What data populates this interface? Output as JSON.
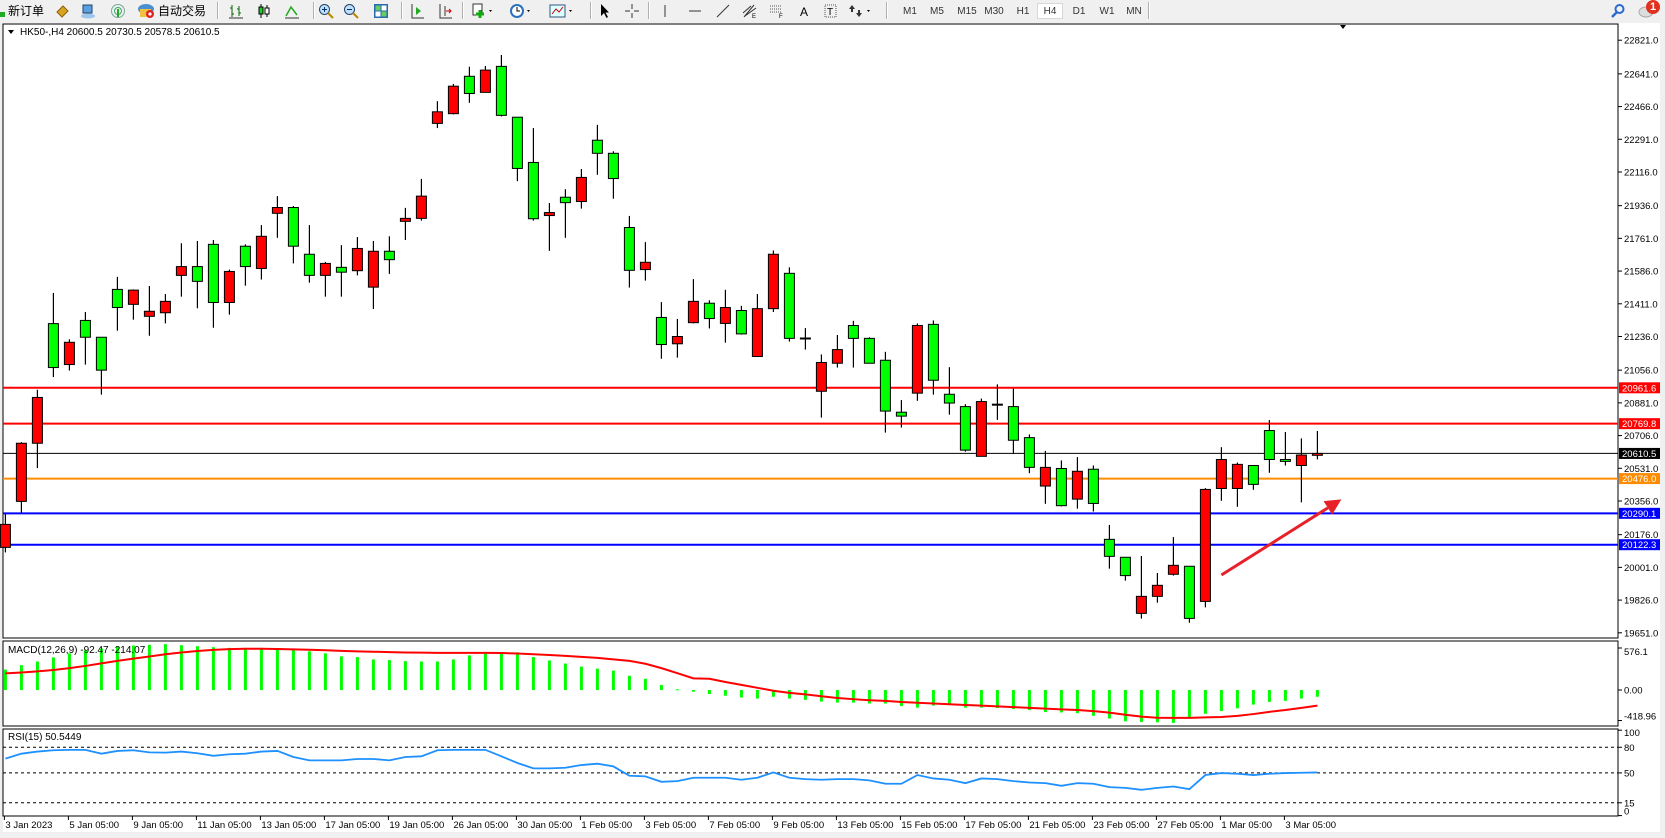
{
  "toolbar": {
    "new_order_label": "新订单",
    "auto_trading_label": "自动交易",
    "icons": [
      "new-order-icon",
      "market-watch-icon",
      "navigator-icon",
      "signals-icon",
      "auto-trading-icon",
      "bar-chart-icon",
      "candlestick-icon",
      "line-chart-icon",
      "zoom-in-icon",
      "zoom-out-icon",
      "tile-windows-icon",
      "chart-shift-icon",
      "auto-scroll-icon",
      "indicators-icon",
      "periods-icon",
      "templates-icon",
      "cursor-icon",
      "crosshair-icon",
      "vertical-line-icon",
      "horizontal-line-icon",
      "trendline-icon",
      "fibonacci-icon",
      "fibo-fan-icon",
      "text-icon",
      "text-label-icon",
      "arrows-icon",
      "search-icon",
      "notification-icon"
    ],
    "timeframes": [
      "M1",
      "M5",
      "M15",
      "M30",
      "H1",
      "H4",
      "D1",
      "W1",
      "MN"
    ],
    "active_timeframe": "H4",
    "notification_count": "1"
  },
  "chart": {
    "header": "HK50-,H4  20600.5 20730.5 20578.5 20610.5",
    "macd_label": "MACD(12,26,9) -92.47 -214.07",
    "rsi_label": "RSI(15) 50.5449"
  },
  "chart_data": [
    {
      "type": "candlestick",
      "symbol": "HK50-",
      "timeframe": "H4",
      "ylim": [
        19651.0,
        22821.0
      ],
      "y_ticks": [
        "22821.0",
        "22641.0",
        "22466.0",
        "22291.0",
        "22116.0",
        "21936.0",
        "21761.0",
        "21586.0",
        "21411.0",
        "21236.0",
        "21056.0",
        "20881.0",
        "20706.0",
        "20531.0",
        "20356.0",
        "20176.0",
        "20001.0",
        "19826.0",
        "19651.0"
      ],
      "x_labels": [
        "3 Jan 2023",
        "5 Jan 05:00",
        "9 Jan 05:00",
        "11 Jan 05:00",
        "13 Jan 05:00",
        "17 Jan 05:00",
        "19 Jan 05:00",
        "26 Jan 05:00",
        "30 Jan 05:00",
        "1 Feb 05:00",
        "3 Feb 05:00",
        "7 Feb 05:00",
        "9 Feb 05:00",
        "13 Feb 05:00",
        "15 Feb 05:00",
        "17 Feb 05:00",
        "21 Feb 05:00",
        "23 Feb 05:00",
        "27 Feb 05:00",
        "1 Mar 05:00",
        "3 Mar 05:00"
      ],
      "x_label_every_n_bars": 4,
      "colors": {
        "bull": "#ff0000",
        "bear": "#00ff00",
        "outline": "#000000"
      },
      "ohlc": [
        [
          20108,
          20286,
          20081,
          20231
        ],
        [
          20354,
          20671,
          20292,
          20665
        ],
        [
          20665,
          20951,
          20532,
          20910
        ],
        [
          21305,
          21469,
          21019,
          21070
        ],
        [
          21086,
          21221,
          21054,
          21205
        ],
        [
          21322,
          21367,
          21086,
          21232
        ],
        [
          21232,
          21232,
          20925,
          21056
        ],
        [
          21488,
          21555,
          21267,
          21391
        ],
        [
          21408,
          21488,
          21326,
          21484
        ],
        [
          21344,
          21506,
          21240,
          21371
        ],
        [
          21363,
          21463,
          21306,
          21424
        ],
        [
          21563,
          21735,
          21449,
          21610
        ],
        [
          21610,
          21747,
          21387,
          21531
        ],
        [
          21729,
          21752,
          21283,
          21418
        ],
        [
          21418,
          21594,
          21353,
          21584
        ],
        [
          21719,
          21729,
          21508,
          21610
        ],
        [
          21600,
          21832,
          21541,
          21772
        ],
        [
          21895,
          21987,
          21764,
          21926
        ],
        [
          21926,
          21934,
          21627,
          21719
        ],
        [
          21676,
          21832,
          21524,
          21563
        ],
        [
          21563,
          21635,
          21449,
          21627
        ],
        [
          21606,
          21725,
          21449,
          21580
        ],
        [
          21588,
          21768,
          21563,
          21707
        ],
        [
          21500,
          21747,
          21383,
          21692
        ],
        [
          21692,
          21772,
          21571,
          21647
        ],
        [
          21852,
          21924,
          21752,
          21868
        ],
        [
          21868,
          22079,
          21856,
          21987
        ],
        [
          22376,
          22495,
          22351,
          22438
        ],
        [
          22428,
          22587,
          22424,
          22575
        ],
        [
          22628,
          22679,
          22486,
          22536
        ],
        [
          22542,
          22683,
          22542,
          22661
        ],
        [
          22681,
          22742,
          22413,
          22419
        ],
        [
          22409,
          22409,
          22067,
          22135
        ],
        [
          22167,
          22351,
          21856,
          21866
        ],
        [
          21883,
          21950,
          21694,
          21899
        ],
        [
          21981,
          22024,
          21764,
          21952
        ],
        [
          21958,
          22132,
          21920,
          22087
        ],
        [
          22286,
          22368,
          22101,
          22216
        ],
        [
          22216,
          22227,
          21973,
          22081
        ],
        [
          21819,
          21881,
          21498,
          21590
        ],
        [
          21594,
          21741,
          21535,
          21633
        ],
        [
          21338,
          21420,
          21117,
          21193
        ],
        [
          21197,
          21330,
          21123,
          21236
        ],
        [
          21310,
          21543,
          21306,
          21424
        ],
        [
          21414,
          21430,
          21279,
          21332
        ],
        [
          21306,
          21486,
          21203,
          21391
        ],
        [
          21375,
          21400,
          21246,
          21250
        ],
        [
          21129,
          21463,
          21129,
          21385
        ],
        [
          21385,
          21696,
          21367,
          21676
        ],
        [
          21574,
          21606,
          21209,
          21226
        ],
        [
          21226,
          21281,
          21166,
          21228
        ],
        [
          20943,
          21140,
          20802,
          21097
        ],
        [
          21093,
          21244,
          21070,
          21166
        ],
        [
          21295,
          21320,
          21070,
          21226
        ],
        [
          21226,
          21232,
          21093,
          21093
        ],
        [
          21109,
          21154,
          20722,
          20837
        ],
        [
          20831,
          20896,
          20749,
          20810
        ],
        [
          20933,
          21306,
          20892,
          21295
        ],
        [
          21301,
          21322,
          20925,
          21002
        ],
        [
          20927,
          21072,
          20818,
          20880
        ],
        [
          20861,
          20874,
          20620,
          20628
        ],
        [
          20595,
          20904,
          20595,
          20888
        ],
        [
          20872,
          20980,
          20790,
          20874
        ],
        [
          20861,
          20957,
          20607,
          20681
        ],
        [
          20695,
          20712,
          20505,
          20536
        ],
        [
          20436,
          20624,
          20341,
          20536
        ],
        [
          20530,
          20573,
          20327,
          20331
        ],
        [
          20366,
          20591,
          20315,
          20515
        ],
        [
          20526,
          20546,
          20300,
          20343
        ],
        [
          20151,
          20228,
          19994,
          20060
        ],
        [
          20055,
          20055,
          19930,
          19957
        ],
        [
          19755,
          20062,
          19727,
          19846
        ],
        [
          19846,
          19971,
          19812,
          19905
        ],
        [
          19964,
          20163,
          19957,
          20012
        ],
        [
          20007,
          20007,
          19705,
          19728
        ],
        [
          19819,
          20425,
          19787,
          20418
        ],
        [
          20423,
          20644,
          20357,
          20578
        ],
        [
          20423,
          20562,
          20325,
          20552
        ],
        [
          20546,
          20546,
          20416,
          20445
        ],
        [
          20733,
          20789,
          20507,
          20578
        ],
        [
          20578,
          20725,
          20546,
          20568
        ],
        [
          20546,
          20691,
          20349,
          20602
        ],
        [
          20600.5,
          20730.5,
          20578.5,
          20610.5
        ]
      ],
      "horizontal_lines": [
        {
          "price": 20961.6,
          "label": "20961.6",
          "color": "#ff0000"
        },
        {
          "price": 20769.8,
          "label": "20769.8",
          "color": "#ff0000"
        },
        {
          "price": 20610.5,
          "label": "20610.5",
          "color": "#000000"
        },
        {
          "price": 20476.0,
          "label": "20476.0",
          "color": "#ff8c00"
        },
        {
          "price": 20290.1,
          "label": "20290.1",
          "color": "#0000ff"
        },
        {
          "price": 20122.3,
          "label": "20122.3",
          "color": "#0000ff"
        }
      ],
      "annotations": [
        {
          "type": "arrow",
          "color": "#e8202a",
          "from": {
            "bar": 77,
            "price": 19960
          },
          "to": {
            "bar": 84.5,
            "price": 20365
          }
        }
      ]
    },
    {
      "type": "bar+line",
      "indicator": "MACD(12,26,9)",
      "ylim": [
        -418.96,
        576.1
      ],
      "y_ticks": [
        "576.1",
        "0.00",
        "-418.96"
      ],
      "colors": {
        "histogram": "#00ff00",
        "signal": "#ff0000"
      },
      "macd": [
        280,
        340,
        391,
        447,
        503,
        545,
        568,
        592,
        610,
        620,
        629,
        615,
        601,
        587,
        578,
        578,
        578,
        570,
        559,
        531,
        503,
        461,
        452,
        419,
        410,
        396,
        391,
        391,
        419,
        475,
        503,
        517,
        517,
        452,
        405,
        363,
        321,
        293,
        266,
        196,
        154,
        70,
        10,
        -23,
        -56,
        -79,
        -103,
        -117,
        -93,
        -117,
        -135,
        -159,
        -173,
        -173,
        -186,
        -186,
        -219,
        -242,
        -214,
        -205,
        -242,
        -242,
        -247,
        -261,
        -275,
        -303,
        -308,
        -317,
        -354,
        -391,
        -429,
        -438,
        -443,
        -452,
        -382,
        -326,
        -289,
        -252,
        -200,
        -163,
        -149,
        -117,
        -92.47
      ],
      "signal": [
        228,
        240,
        255,
        275,
        300,
        330,
        365,
        400,
        430,
        460,
        490,
        515,
        535,
        550,
        560,
        565,
        565,
        562,
        558,
        552,
        545,
        537,
        530,
        525,
        520,
        515,
        512,
        510,
        510,
        510,
        510,
        508,
        500,
        490,
        480,
        468,
        455,
        440,
        420,
        400,
        360,
        300,
        230,
        160,
        154,
        110,
        70,
        30,
        -10,
        -40,
        -60,
        -85,
        -110,
        -126,
        -140,
        -150,
        -165,
        -175,
        -185,
        -195,
        -205,
        -215,
        -225,
        -235,
        -245,
        -255,
        -265,
        -275,
        -290,
        -310,
        -340,
        -365,
        -380,
        -382,
        -382,
        -375,
        -370,
        -355,
        -330,
        -300,
        -275,
        -245,
        -214.07
      ]
    },
    {
      "type": "line",
      "indicator": "RSI(15)",
      "ylim": [
        0,
        100
      ],
      "y_ticks": [
        "100",
        "80",
        "50",
        "15",
        "0"
      ],
      "levels": [
        80,
        50,
        15
      ],
      "color": "#1e90ff",
      "values": [
        66.7,
        72.5,
        75,
        76.5,
        77,
        77,
        72.5,
        75.7,
        76.5,
        74,
        73.7,
        75,
        73,
        70,
        71.8,
        72.5,
        75,
        75.7,
        68.6,
        64.7,
        64.7,
        64.7,
        66.3,
        66.3,
        64.7,
        68.6,
        69.4,
        76.5,
        77,
        77,
        77,
        69.4,
        61.6,
        55.3,
        55.3,
        56,
        59.2,
        60.8,
        57.6,
        46.7,
        45.9,
        39.6,
        40.4,
        44.3,
        44.3,
        44.3,
        42,
        44.3,
        50.6,
        44.3,
        42.7,
        42,
        42.7,
        42.7,
        41.2,
        37.3,
        37.3,
        47.5,
        43.5,
        42,
        38,
        43.5,
        42.7,
        40.4,
        38.8,
        38,
        34.9,
        38,
        37.3,
        33.3,
        32.5,
        30.2,
        32.5,
        34.1,
        31,
        47.5,
        49.8,
        49,
        47.5,
        49,
        49.8,
        50.2,
        50.5449
      ]
    }
  ]
}
